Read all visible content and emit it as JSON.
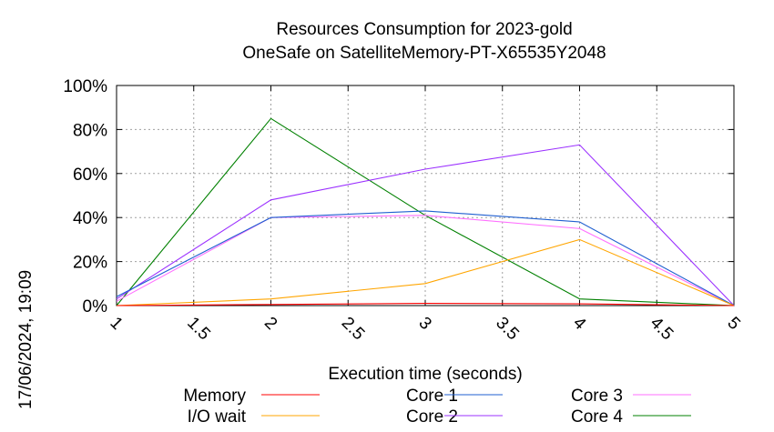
{
  "chart_data": {
    "type": "line",
    "title": [
      "Resources Consumption for 2023-gold",
      "OneSafe on SatelliteMemory-PT-X65535Y2048"
    ],
    "xlabel": "Execution time (seconds)",
    "ylabel": "",
    "xlim": [
      1,
      5
    ],
    "ylim": [
      0,
      100
    ],
    "x_ticks": [
      "1",
      "1.5",
      "2",
      "2.5",
      "3",
      "3.5",
      "4",
      "4.5",
      "5"
    ],
    "y_ticks": [
      "0%",
      "20%",
      "40%",
      "60%",
      "80%",
      "100%"
    ],
    "grid": true,
    "legend_position": "bottom",
    "side_label": "17/06/2024, 19:09",
    "series": [
      {
        "name": "Memory",
        "color": "#ff0000",
        "x": [
          1,
          2,
          3,
          4,
          5
        ],
        "y": [
          0,
          0.5,
          1,
          0.8,
          0
        ]
      },
      {
        "name": "I/O wait",
        "color": "#ffa500",
        "x": [
          1,
          2,
          3,
          4,
          5
        ],
        "y": [
          0,
          3,
          10,
          30,
          0
        ]
      },
      {
        "name": "Core 1",
        "color": "#1f5fd0",
        "x": [
          1,
          2,
          3,
          4,
          5
        ],
        "y": [
          4,
          40,
          43,
          38,
          0
        ]
      },
      {
        "name": "Core 2",
        "color": "#9b30ff",
        "x": [
          1,
          2,
          3,
          4,
          5
        ],
        "y": [
          3,
          48,
          62,
          73,
          0
        ]
      },
      {
        "name": "Core 3",
        "color": "#ff6fff",
        "x": [
          1,
          2,
          3,
          4,
          5
        ],
        "y": [
          2,
          40,
          41,
          35,
          0
        ]
      },
      {
        "name": "Core 4",
        "color": "#008000",
        "x": [
          1,
          2,
          3,
          4,
          5
        ],
        "y": [
          0,
          85,
          41,
          3,
          0
        ]
      }
    ]
  }
}
